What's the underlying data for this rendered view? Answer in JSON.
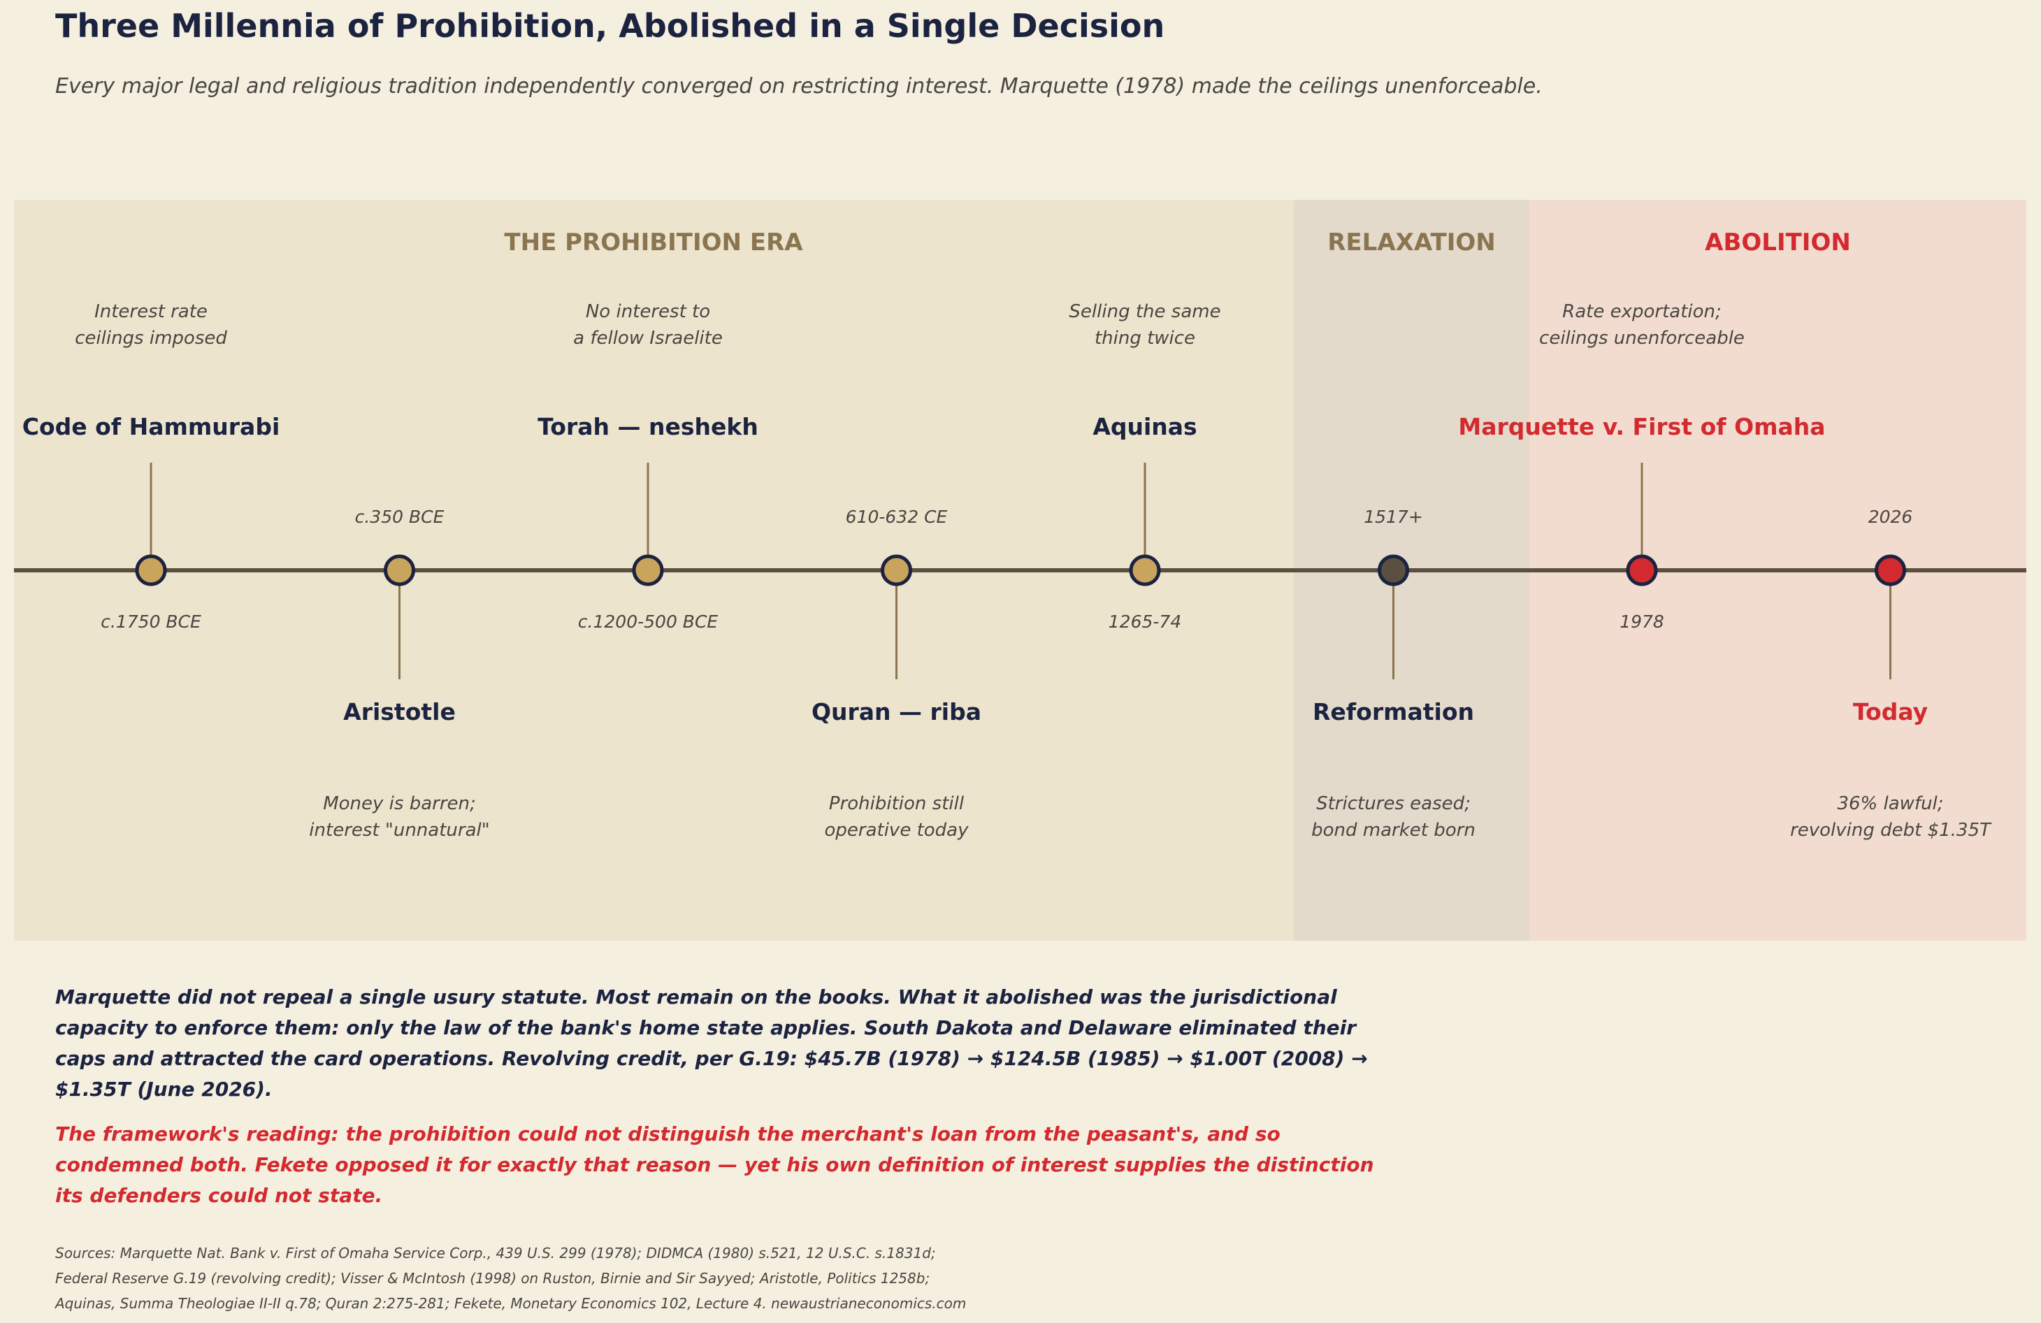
{
  "title": "Three Millennia of Prohibition, Abolished in a Single Decision",
  "subtitle": "Every major legal and religious tradition independently converged on restricting interest. Marquette (1978) made the ceilings unenforceable.",
  "colors": {
    "background": "#f5efe0",
    "navy": "#1b2340",
    "red": "#d32a2f",
    "gold": "#c9a45c",
    "era_label": "#8a7550",
    "axis": "#5a4f40",
    "muted_text": "#4a4640"
  },
  "eras": [
    {
      "label": "THE PROHIBITION ERA",
      "fill": "#ede4ce",
      "label_color": "#8a7550"
    },
    {
      "label": "RELAXATION",
      "fill": "#e3dacb",
      "label_color": "#8a7550"
    },
    {
      "label": "ABOLITION",
      "fill": "#f2dcd0",
      "label_color": "#d32a2f"
    }
  ],
  "events": [
    {
      "name": "Code of Hammurabi",
      "date": "c.1750 BCE",
      "desc": [
        "Interest rate",
        "ceilings imposed"
      ],
      "side": "above",
      "era": "prohibition",
      "marker": "#c9a45c",
      "name_color": "#1b2340"
    },
    {
      "name": "Aristotle",
      "date": "c.350 BCE",
      "desc": [
        "Money is barren;",
        "interest \"unnatural\""
      ],
      "side": "below",
      "era": "prohibition",
      "marker": "#c9a45c",
      "name_color": "#1b2340"
    },
    {
      "name": "Torah — neshekh",
      "date": "c.1200-500 BCE",
      "desc": [
        "No interest to",
        "a fellow Israelite"
      ],
      "side": "above",
      "era": "prohibition",
      "marker": "#c9a45c",
      "name_color": "#1b2340"
    },
    {
      "name": "Quran — riba",
      "date": "610-632 CE",
      "desc": [
        "Prohibition still",
        "operative today"
      ],
      "side": "below",
      "era": "prohibition",
      "marker": "#c9a45c",
      "name_color": "#1b2340"
    },
    {
      "name": "Aquinas",
      "date": "1265-74",
      "desc": [
        "Selling the same",
        "thing twice"
      ],
      "side": "above",
      "era": "prohibition",
      "marker": "#c9a45c",
      "name_color": "#1b2340"
    },
    {
      "name": "Reformation",
      "date": "1517+",
      "desc": [
        "Strictures eased;",
        "bond market born"
      ],
      "side": "below",
      "era": "relaxation",
      "marker": "#5a4f40",
      "name_color": "#1b2340"
    },
    {
      "name": "Marquette v. First of Omaha",
      "date": "1978",
      "desc": [
        "Rate exportation;",
        "ceilings unenforceable"
      ],
      "side": "above",
      "era": "abolition",
      "marker": "#d32a2f",
      "name_color": "#d32a2f"
    },
    {
      "name": "Today",
      "date": "2026",
      "desc": [
        "36% lawful;",
        "revolving debt $1.35T"
      ],
      "side": "below",
      "era": "abolition",
      "marker": "#d32a2f",
      "name_color": "#d32a2f"
    }
  ],
  "paragraph_main": "Marquette did not repeal a single usury statute. Most remain on the books. What it abolished was the jurisdictional capacity to enforce them: only the law of the bank's home state applies. South Dakota and Delaware eliminated their caps and attracted the card operations. Revolving credit, per G.19: $45.7B (1978) → $124.5B (1985) → $1.00T (2008) → $1.35T (June 2026).",
  "paragraph_accent": "The framework's reading: the prohibition could not distinguish the merchant's loan from the peasant's, and so condemned both. Fekete opposed it for exactly that reason — yet his own definition of interest supplies the distinction its defenders could not state.",
  "sources": [
    "Sources: Marquette Nat. Bank v. First of Omaha Service Corp., 439 U.S. 299 (1978); DIDMCA (1980) s.521, 12 U.S.C. s.1831d;",
    "Federal Reserve G.19 (revolving credit); Visser & McIntosh (1998) on Ruston, Birnie and Sir Sayyed; Aristotle, Politics 1258b;",
    "Aquinas, Summa Theologiae II-II q.78; Quran 2:275-281; Fekete, Monetary Economics 102, Lecture 4. newaustrianeconomics.com"
  ]
}
